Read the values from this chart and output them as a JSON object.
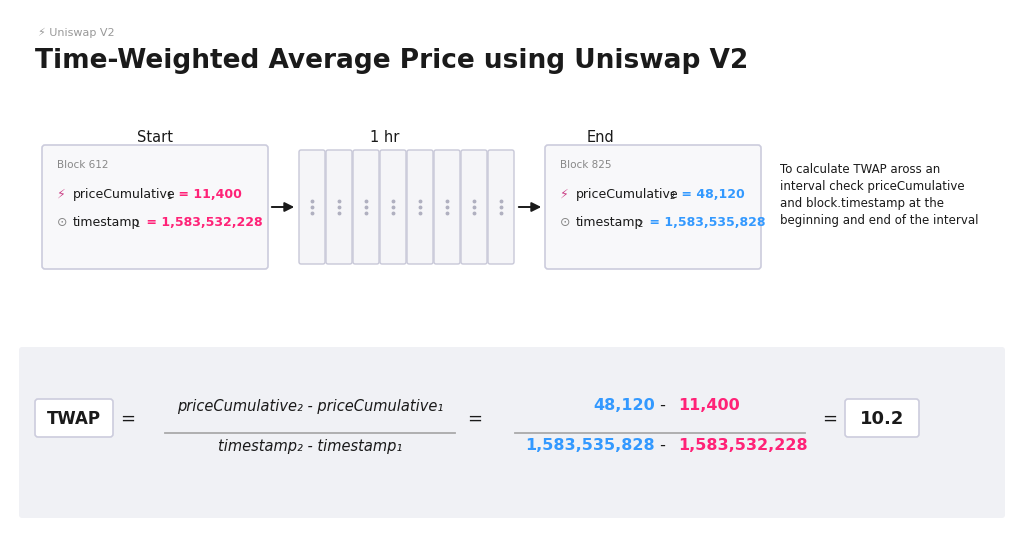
{
  "bg_color": "#ffffff",
  "formula_bg_color": "#f0f1f5",
  "subtitle": "Uniswap V2",
  "title": "Time-Weighted Average Price using Uniswap V2",
  "label_start": "Start",
  "label_1hr": "1 hr",
  "label_end": "End",
  "block1_label": "Block 612",
  "block2_label": "Block 825",
  "price_cumulative1_label": "priceCumulative",
  "price_cumulative1_sub": "1",
  "price_cumulative1_value": "= 11,400",
  "timestamp1_label": "timestamp",
  "timestamp1_sub": "1",
  "timestamp1_value": "= 1,583,532,228",
  "price_cumulative2_label": "priceCumulative",
  "price_cumulative2_sub": "2",
  "price_cumulative2_value": "= 48,120",
  "timestamp2_label": "timestamp",
  "timestamp2_sub": "2",
  "timestamp2_value": "= 1,583,535,828",
  "side_note_lines": [
    "To calculate TWAP aross an",
    "interval check priceCumulative",
    "and block.timestamp at the",
    "beginning and end of the interval"
  ],
  "pink_color": "#ff2277",
  "blue_color": "#3399ff",
  "dark_color": "#1a1a1a",
  "gray_color": "#999999",
  "light_gray": "#888888",
  "box_border_color": "#ccccdd",
  "box_bg": "#f8f8fa",
  "twap_label": "TWAP",
  "formula_num": "priceCumulative₂ - priceCumulative₁",
  "formula_den": "timestamp₂ - timestamp₁",
  "result": "10.2"
}
